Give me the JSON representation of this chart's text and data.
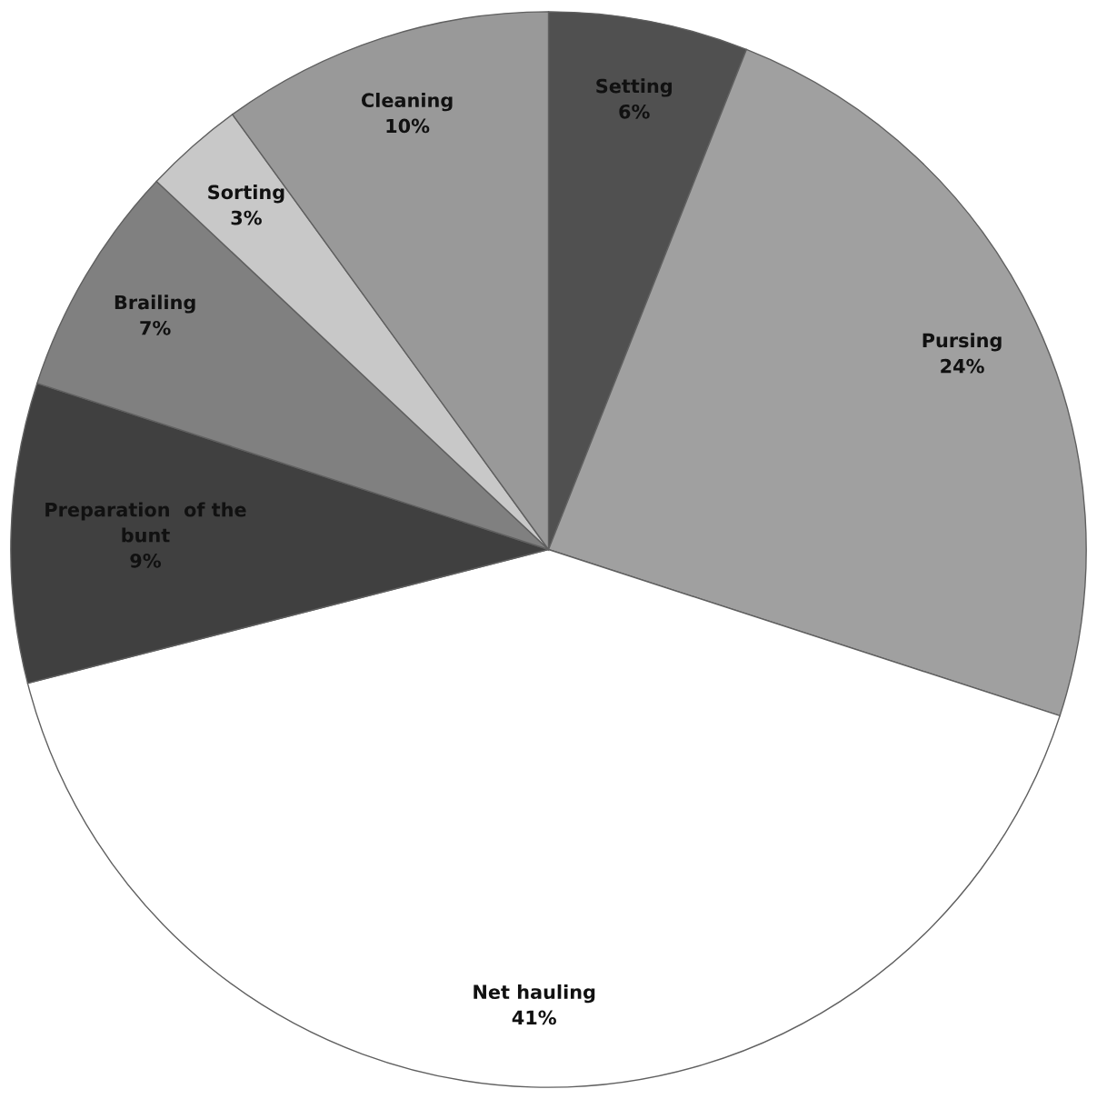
{
  "chart_data": {
    "type": "pie",
    "categories": [
      "Setting",
      "Pursing",
      "Net hauling",
      "Preparation  of the\nbunt",
      "Brailing",
      "Sorting",
      "Cleaning"
    ],
    "values": [
      6,
      24,
      41,
      9,
      7,
      3,
      10
    ],
    "colors": [
      "#505050",
      "#a0a0a0",
      "#ffffff",
      "#404040",
      "#808080",
      "#c8c8c8",
      "#999999"
    ],
    "value_labels": [
      "6%",
      "24%",
      "41%",
      "9%",
      "7%",
      "3%",
      "10%"
    ],
    "legend": false
  }
}
